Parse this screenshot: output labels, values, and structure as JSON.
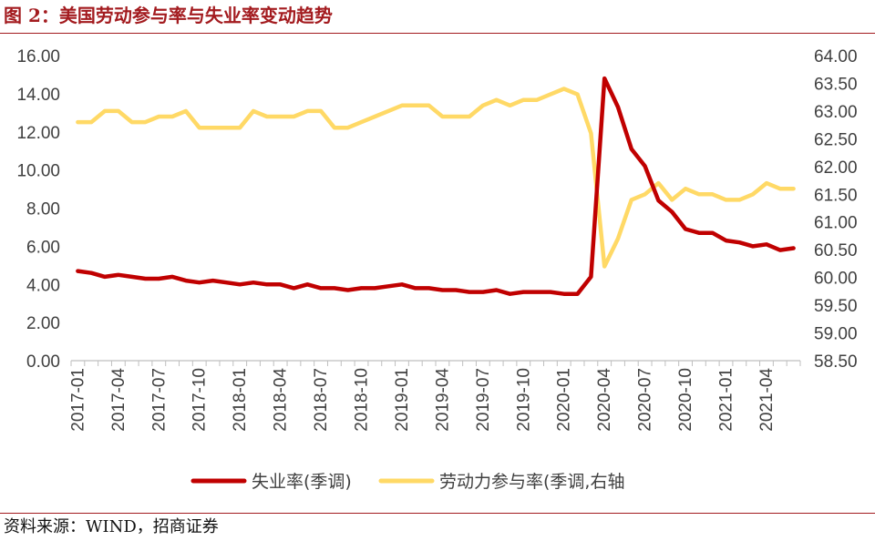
{
  "figure": {
    "title": "图 2：美国劳动参与率与失业率变动趋势",
    "source": "资料来源：WIND，招商证券"
  },
  "colors": {
    "brand": "#a31b1f",
    "unemployment": "#c00000",
    "participation": "#ffd966"
  },
  "chart_data": {
    "type": "line",
    "x": [
      "2017-01",
      "2017-02",
      "2017-03",
      "2017-04",
      "2017-05",
      "2017-06",
      "2017-07",
      "2017-08",
      "2017-09",
      "2017-10",
      "2017-11",
      "2017-12",
      "2018-01",
      "2018-02",
      "2018-03",
      "2018-04",
      "2018-05",
      "2018-06",
      "2018-07",
      "2018-08",
      "2018-09",
      "2018-10",
      "2018-11",
      "2018-12",
      "2019-01",
      "2019-02",
      "2019-03",
      "2019-04",
      "2019-05",
      "2019-06",
      "2019-07",
      "2019-08",
      "2019-09",
      "2019-10",
      "2019-11",
      "2019-12",
      "2020-01",
      "2020-02",
      "2020-03",
      "2020-04",
      "2020-05",
      "2020-06",
      "2020-07",
      "2020-08",
      "2020-09",
      "2020-10",
      "2020-11",
      "2020-12",
      "2021-01",
      "2021-02",
      "2021-03",
      "2021-04",
      "2021-05",
      "2021-06"
    ],
    "x_tick_labels": [
      "2017-01",
      "2017-04",
      "2017-07",
      "2017-10",
      "2018-01",
      "2018-04",
      "2018-07",
      "2018-10",
      "2019-01",
      "2019-04",
      "2019-07",
      "2019-10",
      "2020-01",
      "2020-04",
      "2020-07",
      "2020-10",
      "2021-01",
      "2021-04"
    ],
    "series": [
      {
        "name": "失业率(季调)",
        "axis": "left",
        "color": "#c00000",
        "values": [
          4.7,
          4.6,
          4.4,
          4.5,
          4.4,
          4.3,
          4.3,
          4.4,
          4.2,
          4.1,
          4.2,
          4.1,
          4.0,
          4.1,
          4.0,
          4.0,
          3.8,
          4.0,
          3.8,
          3.8,
          3.7,
          3.8,
          3.8,
          3.9,
          4.0,
          3.8,
          3.8,
          3.7,
          3.7,
          3.6,
          3.6,
          3.7,
          3.5,
          3.6,
          3.6,
          3.6,
          3.5,
          3.5,
          4.4,
          14.8,
          13.3,
          11.1,
          10.2,
          8.4,
          7.8,
          6.9,
          6.7,
          6.7,
          6.3,
          6.2,
          6.0,
          6.1,
          5.8,
          5.9
        ]
      },
      {
        "name": "劳动力参与率(季调,右轴",
        "axis": "right",
        "color": "#ffd966",
        "values": [
          62.8,
          62.8,
          63.0,
          63.0,
          62.8,
          62.8,
          62.9,
          62.9,
          63.0,
          62.7,
          62.7,
          62.7,
          62.7,
          63.0,
          62.9,
          62.9,
          62.9,
          63.0,
          63.0,
          62.7,
          62.7,
          62.8,
          62.9,
          63.0,
          63.1,
          63.1,
          63.1,
          62.9,
          62.9,
          62.9,
          63.1,
          63.2,
          63.1,
          63.2,
          63.2,
          63.3,
          63.4,
          63.3,
          62.6,
          60.2,
          60.7,
          61.4,
          61.5,
          61.7,
          61.4,
          61.6,
          61.5,
          61.5,
          61.4,
          61.4,
          61.5,
          61.7,
          61.6,
          61.6
        ]
      }
    ],
    "y_left": {
      "lim": [
        0,
        16
      ],
      "ticks": [
        "0.00",
        "2.00",
        "4.00",
        "6.00",
        "8.00",
        "10.00",
        "12.00",
        "14.00",
        "16.00"
      ]
    },
    "y_right": {
      "lim": [
        58.5,
        64.0
      ],
      "ticks": [
        "58.50",
        "59.00",
        "59.50",
        "60.00",
        "60.50",
        "61.00",
        "61.50",
        "62.00",
        "62.50",
        "63.00",
        "63.50",
        "64.00"
      ]
    },
    "grid": false,
    "legend_position": "bottom"
  }
}
